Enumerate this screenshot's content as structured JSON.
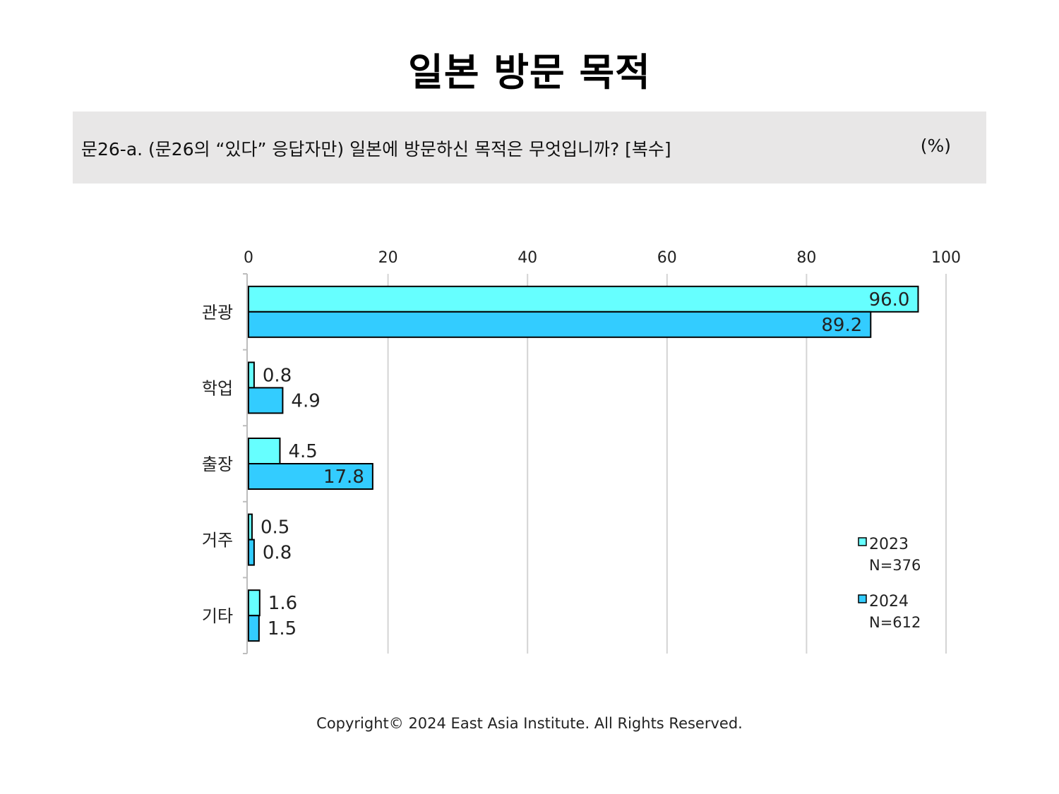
{
  "title": "일본 방문 목적",
  "question": {
    "text": "문26-a. (문26의 “있다” 응답자만) 일본에 방문하신 목적은 무엇입니까? [복수]",
    "unit": "(%)"
  },
  "chart_data": {
    "type": "bar",
    "orientation": "horizontal",
    "title": "",
    "xlabel": "",
    "ylabel": "",
    "xlim": [
      0,
      100
    ],
    "ticks": [
      "0",
      "20",
      "40",
      "60",
      "80",
      "100"
    ],
    "grid": true,
    "legend_position": "right",
    "categories": [
      "관광",
      "학업",
      "출장",
      "거주",
      "기타"
    ],
    "series": [
      {
        "name": "2023",
        "note": "N=376",
        "color": "#66ffff",
        "values": [
          96.0,
          0.8,
          4.5,
          0.5,
          1.6
        ]
      },
      {
        "name": "2024",
        "note": "N=612",
        "color": "#33ccff",
        "values": [
          89.2,
          4.9,
          17.8,
          0.8,
          1.5
        ]
      }
    ]
  },
  "footer": "Copyright© 2024 East Asia Institute. All Rights Reserved."
}
